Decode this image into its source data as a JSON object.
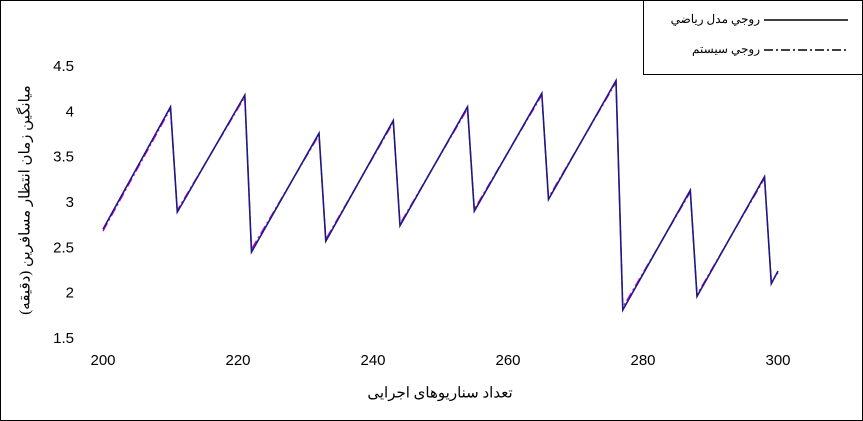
{
  "chart_data": {
    "type": "line",
    "x_label": "تعداد سناریوهای اجرایی",
    "y_label": "میانگین زمان انتظار مسافرین (دقیقه)",
    "x": [
      200,
      210,
      211,
      221,
      222,
      232,
      233,
      243,
      244,
      254,
      255,
      265,
      266,
      276,
      277,
      287,
      288,
      298,
      299,
      300
    ],
    "series": [
      {
        "name": "روجي مدل رياضي",
        "color": "#1a1a80",
        "dash": "solid",
        "values": [
          2.71,
          4.06,
          2.9,
          4.19,
          2.46,
          3.77,
          2.58,
          3.91,
          2.75,
          4.06,
          2.91,
          4.21,
          3.04,
          4.35,
          1.82,
          3.14,
          1.97,
          3.29,
          2.11,
          2.25
        ]
      },
      {
        "name": "روجي سيستم",
        "color": "#e000e0",
        "dash": "dashdot",
        "values": [
          2.69,
          4.04,
          2.92,
          4.17,
          2.49,
          3.75,
          2.6,
          3.89,
          2.77,
          4.04,
          2.93,
          4.19,
          3.06,
          4.33,
          1.85,
          3.12,
          1.99,
          3.27,
          2.13,
          2.23
        ]
      }
    ],
    "xlim": [
      200,
      300
    ],
    "xticks": [
      200,
      220,
      240,
      260,
      280,
      300
    ],
    "ylim": [
      1.5,
      4.5
    ],
    "yticks": [
      1.5,
      2,
      2.5,
      3,
      3.5,
      4,
      4.5
    ],
    "legend": "top-right"
  }
}
